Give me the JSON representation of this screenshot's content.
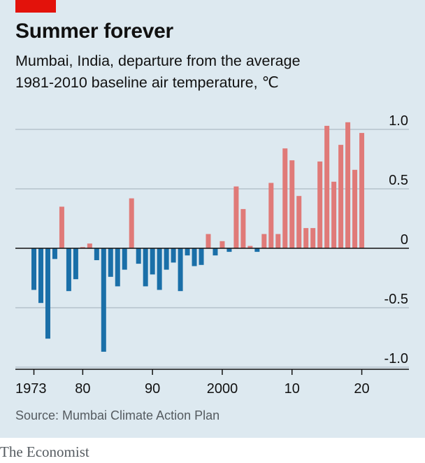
{
  "header": {
    "title": "Summer forever",
    "subtitle_line1": "Mumbai, India, departure from the average",
    "subtitle_line2": "1981-2010 baseline air temperature, ℃"
  },
  "footer": {
    "source": "Source: Mumbai Climate Action Plan",
    "brand": "The Economist"
  },
  "colors": {
    "positive": "#e07a78",
    "negative": "#1a6fa8",
    "background": "#dde9f0",
    "accent": "#e3120b"
  },
  "chart_data": {
    "type": "bar",
    "title": "Summer forever",
    "subtitle": "Mumbai, India, departure from the average 1981-2010 baseline air temperature, ℃",
    "xlabel": "",
    "ylabel": "",
    "ylim": [
      -1.0,
      1.0
    ],
    "y_ticks": [
      {
        "value": 1.0,
        "label": "1.0"
      },
      {
        "value": 0.5,
        "label": "0.5"
      },
      {
        "value": 0,
        "label": "0"
      },
      {
        "value": -0.5,
        "label": "-0.5"
      },
      {
        "value": -1.0,
        "label": "-1.0"
      }
    ],
    "x_ticks": [
      {
        "value": 1973,
        "label": "1973"
      },
      {
        "value": 1980,
        "label": "80"
      },
      {
        "value": 1990,
        "label": "90"
      },
      {
        "value": 2000,
        "label": "2000"
      },
      {
        "value": 2010,
        "label": "10"
      },
      {
        "value": 2020,
        "label": "20"
      }
    ],
    "grid": true,
    "legend": "none",
    "x": [
      1973,
      1974,
      1975,
      1976,
      1977,
      1978,
      1979,
      1980,
      1981,
      1982,
      1983,
      1984,
      1985,
      1986,
      1987,
      1988,
      1989,
      1990,
      1991,
      1992,
      1993,
      1994,
      1995,
      1996,
      1997,
      1998,
      1999,
      2000,
      2001,
      2002,
      2003,
      2004,
      2005,
      2006,
      2007,
      2008,
      2009,
      2010,
      2011,
      2012,
      2013,
      2014,
      2015,
      2016,
      2017,
      2018,
      2019,
      2020
    ],
    "values": [
      -0.35,
      -0.46,
      -0.76,
      -0.09,
      0.35,
      -0.36,
      -0.26,
      0.01,
      0.04,
      -0.1,
      -0.87,
      -0.24,
      -0.32,
      -0.18,
      0.42,
      -0.13,
      -0.32,
      -0.22,
      -0.35,
      -0.18,
      -0.12,
      -0.36,
      -0.06,
      -0.15,
      -0.14,
      0.12,
      -0.06,
      0.06,
      -0.03,
      0.52,
      0.33,
      0.02,
      -0.03,
      0.12,
      0.55,
      0.12,
      0.84,
      0.74,
      0.44,
      0.17,
      0.17,
      0.73,
      1.03,
      0.56,
      0.87,
      1.06,
      0.66,
      0.97
    ]
  }
}
